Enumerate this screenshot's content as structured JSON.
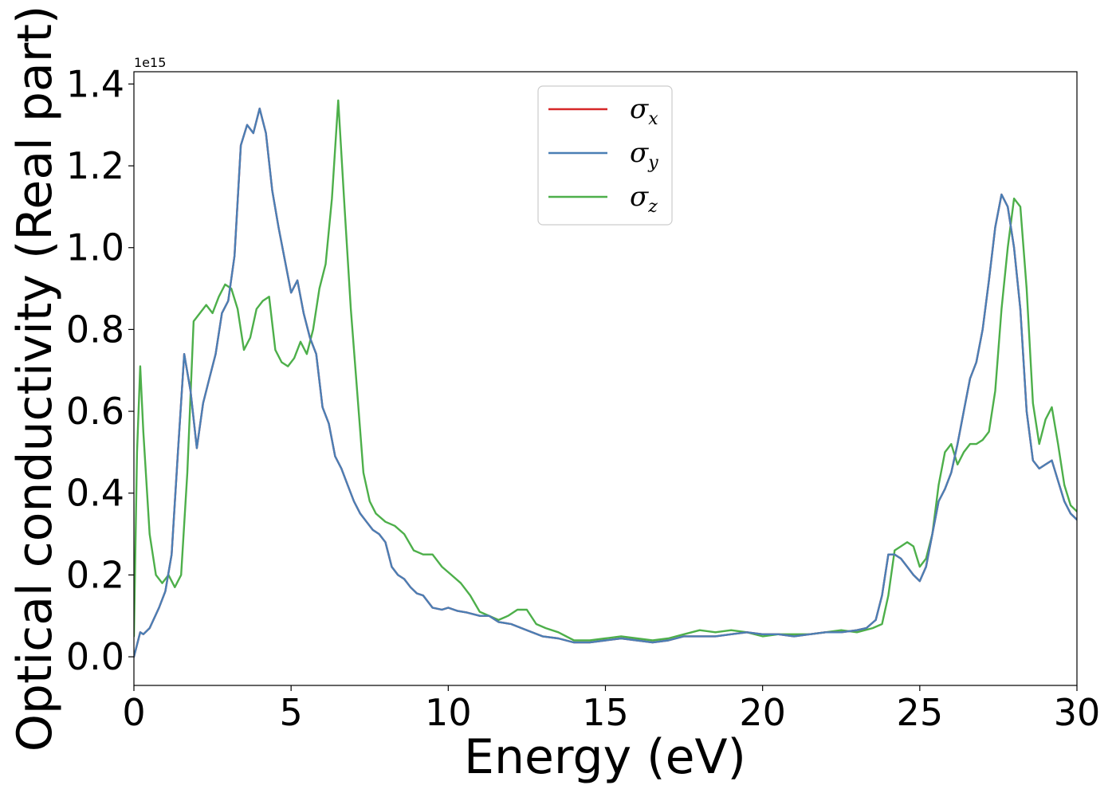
{
  "chart_data": {
    "type": "line",
    "title": "",
    "xlabel": "Energy (eV)",
    "ylabel": "Optical conductivity (Real part)",
    "y_offset_label": "1e15",
    "xlim": [
      0,
      30
    ],
    "ylim": [
      -0.07,
      1.43
    ],
    "xticks": [
      0,
      5,
      10,
      15,
      20,
      25,
      30
    ],
    "xtick_labels": [
      "0",
      "5",
      "10",
      "15",
      "20",
      "25",
      "30"
    ],
    "yticks": [
      0.0,
      0.2,
      0.4,
      0.6,
      0.8,
      1.0,
      1.2,
      1.4
    ],
    "ytick_labels": [
      "0.0",
      "0.2",
      "0.4",
      "0.6",
      "0.8",
      "1.0",
      "1.2",
      "1.4"
    ],
    "grid": false,
    "legend_position": "top-center",
    "series": [
      {
        "name": "σx",
        "legend_symbol": "σ",
        "legend_subscript": "x",
        "color": "#d62728",
        "x": [
          0,
          0.2,
          0.3,
          0.5,
          0.8,
          1.0,
          1.2,
          1.4,
          1.6,
          1.8,
          2.0,
          2.2,
          2.4,
          2.6,
          2.8,
          3.0,
          3.2,
          3.4,
          3.6,
          3.8,
          4.0,
          4.2,
          4.4,
          4.6,
          4.8,
          5.0,
          5.2,
          5.4,
          5.6,
          5.8,
          6.0,
          6.2,
          6.4,
          6.6,
          6.8,
          7.0,
          7.2,
          7.4,
          7.6,
          7.8,
          8.0,
          8.2,
          8.4,
          8.6,
          8.8,
          9.0,
          9.2,
          9.5,
          9.8,
          10.0,
          10.3,
          10.6,
          11.0,
          11.3,
          11.6,
          12.0,
          12.5,
          13.0,
          13.5,
          14.0,
          14.5,
          15.0,
          15.5,
          16.0,
          16.5,
          17.0,
          17.5,
          18.0,
          18.5,
          19.0,
          19.5,
          20.0,
          20.5,
          21.0,
          21.5,
          22.0,
          22.5,
          23.0,
          23.3,
          23.6,
          23.8,
          24.0,
          24.2,
          24.4,
          24.6,
          24.8,
          25.0,
          25.2,
          25.4,
          25.6,
          25.8,
          26.0,
          26.2,
          26.4,
          26.6,
          26.8,
          27.0,
          27.2,
          27.4,
          27.6,
          27.8,
          28.0,
          28.2,
          28.4,
          28.6,
          28.8,
          29.0,
          29.2,
          29.4,
          29.6,
          29.8,
          30.0
        ],
        "values": [
          0.0,
          0.06,
          0.055,
          0.07,
          0.12,
          0.16,
          0.25,
          0.5,
          0.74,
          0.65,
          0.51,
          0.62,
          0.68,
          0.74,
          0.84,
          0.87,
          0.98,
          1.25,
          1.3,
          1.28,
          1.34,
          1.28,
          1.14,
          1.05,
          0.97,
          0.89,
          0.92,
          0.84,
          0.78,
          0.74,
          0.61,
          0.57,
          0.49,
          0.46,
          0.42,
          0.38,
          0.35,
          0.33,
          0.31,
          0.3,
          0.28,
          0.22,
          0.2,
          0.19,
          0.17,
          0.155,
          0.15,
          0.12,
          0.115,
          0.12,
          0.112,
          0.108,
          0.1,
          0.1,
          0.085,
          0.08,
          0.065,
          0.05,
          0.045,
          0.035,
          0.035,
          0.04,
          0.045,
          0.04,
          0.035,
          0.04,
          0.05,
          0.05,
          0.05,
          0.055,
          0.06,
          0.055,
          0.055,
          0.05,
          0.055,
          0.06,
          0.06,
          0.065,
          0.07,
          0.09,
          0.15,
          0.25,
          0.25,
          0.24,
          0.22,
          0.2,
          0.185,
          0.22,
          0.3,
          0.38,
          0.41,
          0.45,
          0.52,
          0.6,
          0.68,
          0.72,
          0.8,
          0.92,
          1.05,
          1.13,
          1.1,
          1.0,
          0.85,
          0.6,
          0.48,
          0.46,
          0.47,
          0.48,
          0.43,
          0.38,
          0.35,
          0.335
        ]
      },
      {
        "name": "σy",
        "legend_symbol": "σ",
        "legend_subscript": "y",
        "color": "#4a7fb5",
        "x": [
          0,
          0.2,
          0.3,
          0.5,
          0.8,
          1.0,
          1.2,
          1.4,
          1.6,
          1.8,
          2.0,
          2.2,
          2.4,
          2.6,
          2.8,
          3.0,
          3.2,
          3.4,
          3.6,
          3.8,
          4.0,
          4.2,
          4.4,
          4.6,
          4.8,
          5.0,
          5.2,
          5.4,
          5.6,
          5.8,
          6.0,
          6.2,
          6.4,
          6.6,
          6.8,
          7.0,
          7.2,
          7.4,
          7.6,
          7.8,
          8.0,
          8.2,
          8.4,
          8.6,
          8.8,
          9.0,
          9.2,
          9.5,
          9.8,
          10.0,
          10.3,
          10.6,
          11.0,
          11.3,
          11.6,
          12.0,
          12.5,
          13.0,
          13.5,
          14.0,
          14.5,
          15.0,
          15.5,
          16.0,
          16.5,
          17.0,
          17.5,
          18.0,
          18.5,
          19.0,
          19.5,
          20.0,
          20.5,
          21.0,
          21.5,
          22.0,
          22.5,
          23.0,
          23.3,
          23.6,
          23.8,
          24.0,
          24.2,
          24.4,
          24.6,
          24.8,
          25.0,
          25.2,
          25.4,
          25.6,
          25.8,
          26.0,
          26.2,
          26.4,
          26.6,
          26.8,
          27.0,
          27.2,
          27.4,
          27.6,
          27.8,
          28.0,
          28.2,
          28.4,
          28.6,
          28.8,
          29.0,
          29.2,
          29.4,
          29.6,
          29.8,
          30.0
        ],
        "values": [
          0.0,
          0.06,
          0.055,
          0.07,
          0.12,
          0.16,
          0.25,
          0.5,
          0.74,
          0.65,
          0.51,
          0.62,
          0.68,
          0.74,
          0.84,
          0.87,
          0.98,
          1.25,
          1.3,
          1.28,
          1.34,
          1.28,
          1.14,
          1.05,
          0.97,
          0.89,
          0.92,
          0.84,
          0.78,
          0.74,
          0.61,
          0.57,
          0.49,
          0.46,
          0.42,
          0.38,
          0.35,
          0.33,
          0.31,
          0.3,
          0.28,
          0.22,
          0.2,
          0.19,
          0.17,
          0.155,
          0.15,
          0.12,
          0.115,
          0.12,
          0.112,
          0.108,
          0.1,
          0.1,
          0.085,
          0.08,
          0.065,
          0.05,
          0.045,
          0.035,
          0.035,
          0.04,
          0.045,
          0.04,
          0.035,
          0.04,
          0.05,
          0.05,
          0.05,
          0.055,
          0.06,
          0.055,
          0.055,
          0.05,
          0.055,
          0.06,
          0.06,
          0.065,
          0.07,
          0.09,
          0.15,
          0.25,
          0.25,
          0.24,
          0.22,
          0.2,
          0.185,
          0.22,
          0.3,
          0.38,
          0.41,
          0.45,
          0.52,
          0.6,
          0.68,
          0.72,
          0.8,
          0.92,
          1.05,
          1.13,
          1.1,
          1.0,
          0.85,
          0.6,
          0.48,
          0.46,
          0.47,
          0.48,
          0.43,
          0.38,
          0.35,
          0.335
        ]
      },
      {
        "name": "σz",
        "legend_symbol": "σ",
        "legend_subscript": "z",
        "color": "#4daf4a",
        "x": [
          0,
          0.1,
          0.2,
          0.3,
          0.5,
          0.7,
          0.9,
          1.1,
          1.3,
          1.5,
          1.7,
          1.9,
          2.1,
          2.3,
          2.5,
          2.7,
          2.9,
          3.1,
          3.3,
          3.5,
          3.7,
          3.9,
          4.1,
          4.3,
          4.5,
          4.7,
          4.9,
          5.1,
          5.3,
          5.5,
          5.7,
          5.9,
          6.1,
          6.3,
          6.5,
          6.7,
          6.9,
          7.1,
          7.3,
          7.5,
          7.7,
          8.0,
          8.3,
          8.6,
          8.9,
          9.2,
          9.5,
          9.8,
          10.1,
          10.4,
          10.7,
          11.0,
          11.3,
          11.6,
          11.9,
          12.2,
          12.5,
          12.8,
          13.1,
          13.5,
          14.0,
          14.5,
          15.0,
          15.5,
          16.0,
          16.5,
          17.0,
          17.5,
          18.0,
          18.5,
          19.0,
          19.5,
          20.0,
          20.5,
          21.0,
          21.5,
          22.0,
          22.5,
          23.0,
          23.5,
          23.8,
          24.0,
          24.2,
          24.4,
          24.6,
          24.8,
          25.0,
          25.2,
          25.4,
          25.6,
          25.8,
          26.0,
          26.2,
          26.4,
          26.6,
          26.8,
          27.0,
          27.2,
          27.4,
          27.6,
          27.8,
          28.0,
          28.2,
          28.4,
          28.6,
          28.8,
          29.0,
          29.2,
          29.4,
          29.6,
          29.8,
          30.0
        ],
        "values": [
          0.05,
          0.5,
          0.71,
          0.55,
          0.3,
          0.2,
          0.18,
          0.2,
          0.17,
          0.2,
          0.45,
          0.82,
          0.84,
          0.86,
          0.84,
          0.88,
          0.91,
          0.9,
          0.85,
          0.75,
          0.78,
          0.85,
          0.87,
          0.88,
          0.75,
          0.72,
          0.71,
          0.73,
          0.77,
          0.74,
          0.8,
          0.9,
          0.96,
          1.12,
          1.36,
          1.1,
          0.85,
          0.65,
          0.45,
          0.38,
          0.35,
          0.33,
          0.32,
          0.3,
          0.26,
          0.25,
          0.25,
          0.22,
          0.2,
          0.18,
          0.15,
          0.11,
          0.1,
          0.09,
          0.1,
          0.115,
          0.115,
          0.08,
          0.07,
          0.06,
          0.04,
          0.04,
          0.045,
          0.05,
          0.045,
          0.04,
          0.045,
          0.055,
          0.065,
          0.06,
          0.065,
          0.06,
          0.05,
          0.055,
          0.055,
          0.055,
          0.06,
          0.065,
          0.06,
          0.07,
          0.08,
          0.15,
          0.26,
          0.27,
          0.28,
          0.27,
          0.22,
          0.24,
          0.3,
          0.42,
          0.5,
          0.52,
          0.47,
          0.5,
          0.52,
          0.52,
          0.53,
          0.55,
          0.65,
          0.85,
          1.0,
          1.12,
          1.1,
          0.9,
          0.62,
          0.52,
          0.58,
          0.61,
          0.52,
          0.42,
          0.37,
          0.355
        ]
      }
    ]
  }
}
